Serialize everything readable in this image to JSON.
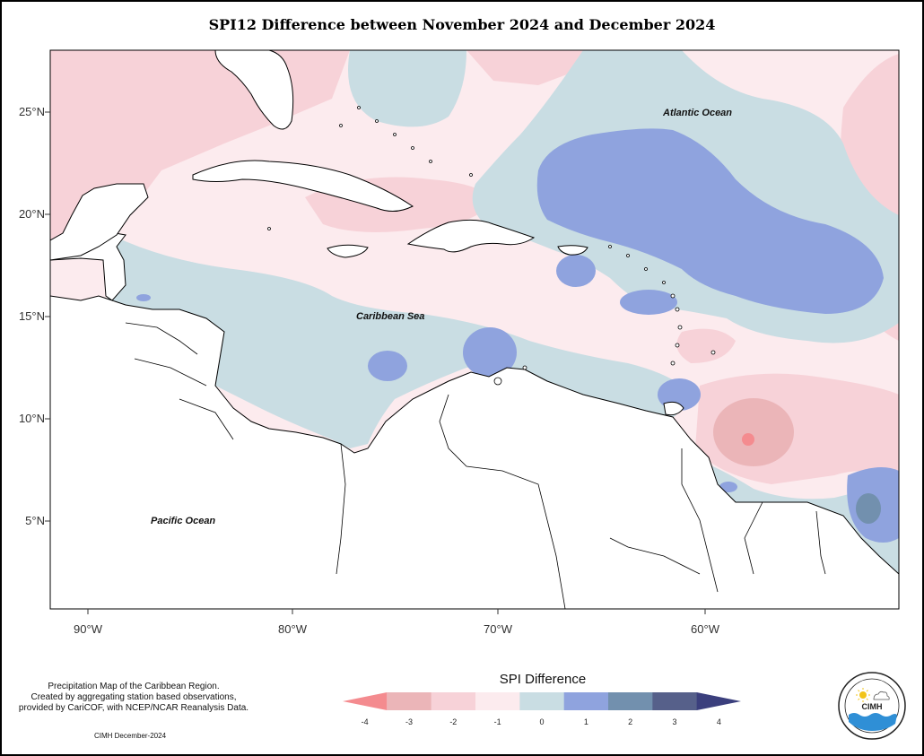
{
  "title": "SPI12 Difference between November 2024 and December 2024",
  "axes": {
    "y_ticks": [
      "25°N",
      "20°N",
      "15°N",
      "10°N",
      "5°N"
    ],
    "x_ticks": [
      "90°W",
      "80°W",
      "70°W",
      "60°W"
    ]
  },
  "labels": {
    "atlantic": "Atlantic Ocean",
    "caribbean": "Caribbean Sea",
    "pacific": "Pacific Ocean"
  },
  "legend": {
    "title": "SPI Difference",
    "ticks": [
      "-4",
      "-3",
      "-2",
      "-1",
      "0",
      "1",
      "2",
      "3",
      "4"
    ],
    "colors": [
      "#f48b8f",
      "#ebb5b8",
      "#f7d2d8",
      "#fcebee",
      "#c9dde3",
      "#8fa3de",
      "#7290ae",
      "#56608a",
      "#3b3f7d"
    ]
  },
  "footnote": {
    "line1": "Precipitation Map of the Caribbean Region.",
    "line2": "Created by aggregating station based observations,",
    "line3": "provided by CariCOF, with NCEP/NCAR Reanalysis Data.",
    "credit": "CIMH December-2024"
  },
  "logo": {
    "text": "CIMH"
  }
}
